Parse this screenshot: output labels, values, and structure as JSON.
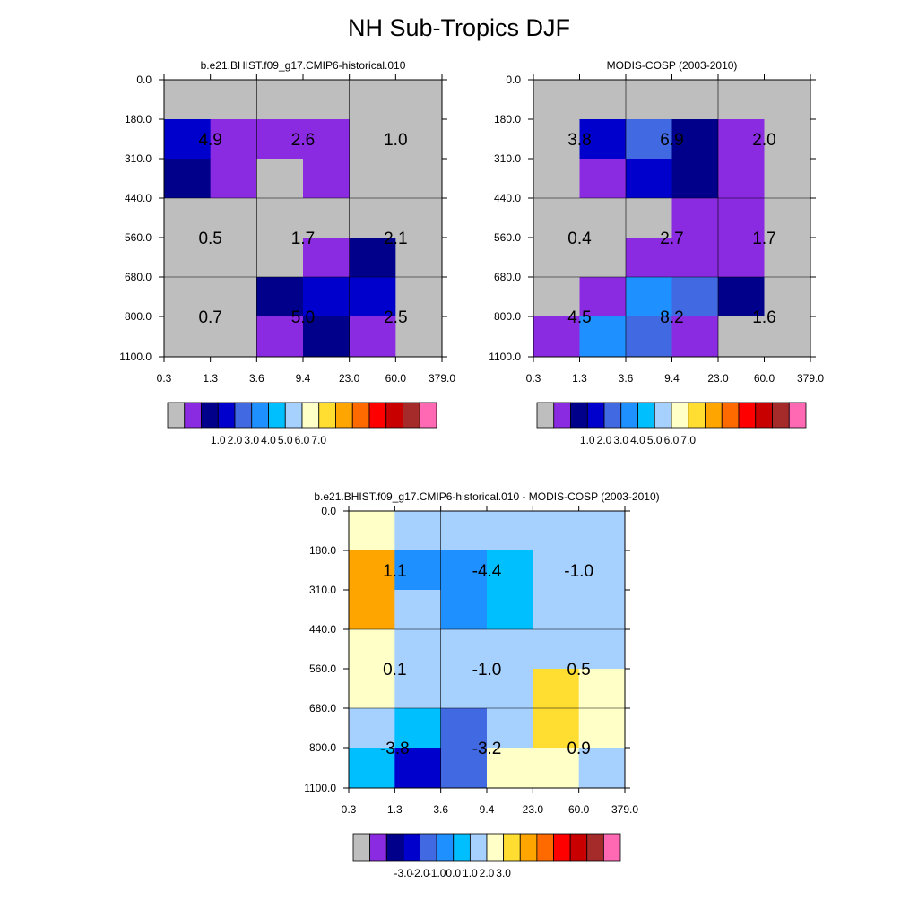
{
  "figure": {
    "title": "NH Sub-Tropics DJF"
  },
  "colors": {
    "nodata": "#bebebe",
    "palette": [
      "#bebebe",
      "#8a2be2",
      "#00008b",
      "#0000cd",
      "#4169e1",
      "#1e90ff",
      "#00bfff",
      "#a6d1ff",
      "#ffffc8",
      "#ffde31",
      "#ffa500",
      "#ff6a00",
      "#ff0000",
      "#c80000",
      "#a52a2a",
      "#ff69b4"
    ]
  },
  "chart_data": [
    {
      "type": "heatmap",
      "title": "b.e21.BHIST.f09_g17.CMIP6-historical.010",
      "x_ticks": [
        "0.3",
        "1.3",
        "3.6",
        "9.4",
        "23.0",
        "60.0",
        "379.0"
      ],
      "y_ticks": [
        "0.0",
        "180.0",
        "310.0",
        "440.0",
        "560.0",
        "680.0",
        "800.0",
        "1100.0"
      ],
      "cells": [
        [
          0,
          0,
          0,
          0,
          0,
          0
        ],
        [
          3,
          1,
          1,
          1,
          0,
          0
        ],
        [
          2,
          1,
          0,
          1,
          0,
          0
        ],
        [
          0,
          0,
          0,
          0,
          0,
          0
        ],
        [
          0,
          0,
          0,
          1,
          2,
          0
        ],
        [
          0,
          0,
          2,
          3,
          3,
          0
        ],
        [
          0,
          0,
          1,
          2,
          1,
          0
        ]
      ],
      "boxes": [
        {
          "label": "4.9",
          "col": 0,
          "row": 0
        },
        {
          "label": "2.6",
          "col": 1,
          "row": 0
        },
        {
          "label": "1.0",
          "col": 2,
          "row": 0
        },
        {
          "label": "0.5",
          "col": 0,
          "row": 1
        },
        {
          "label": "1.7",
          "col": 1,
          "row": 1
        },
        {
          "label": "2.1",
          "col": 2,
          "row": 1
        },
        {
          "label": "0.7",
          "col": 0,
          "row": 2
        },
        {
          "label": "5.0",
          "col": 1,
          "row": 2
        },
        {
          "label": "2.5",
          "col": 2,
          "row": 2
        }
      ],
      "colorbar_labels": [
        "1.0",
        "2.0",
        "3.0",
        "4.0",
        "5.0",
        "6.0",
        "7.0"
      ]
    },
    {
      "type": "heatmap",
      "title": "MODIS-COSP (2003-2010)",
      "x_ticks": [
        "0.3",
        "1.3",
        "3.6",
        "9.4",
        "23.0",
        "60.0",
        "379.0"
      ],
      "y_ticks": [
        "0.0",
        "180.0",
        "310.0",
        "440.0",
        "560.0",
        "680.0",
        "800.0",
        "1100.0"
      ],
      "cells": [
        [
          0,
          0,
          0,
          0,
          0,
          0
        ],
        [
          0,
          3,
          4,
          2,
          1,
          0
        ],
        [
          0,
          1,
          3,
          2,
          1,
          0
        ],
        [
          0,
          0,
          0,
          1,
          1,
          0
        ],
        [
          0,
          0,
          1,
          1,
          1,
          0
        ],
        [
          0,
          1,
          5,
          4,
          2,
          0
        ],
        [
          1,
          5,
          4,
          1,
          0,
          0
        ]
      ],
      "boxes": [
        {
          "label": "3.8",
          "col": 0,
          "row": 0
        },
        {
          "label": "6.9",
          "col": 1,
          "row": 0
        },
        {
          "label": "2.0",
          "col": 2,
          "row": 0
        },
        {
          "label": "0.4",
          "col": 0,
          "row": 1
        },
        {
          "label": "2.7",
          "col": 1,
          "row": 1
        },
        {
          "label": "1.7",
          "col": 2,
          "row": 1
        },
        {
          "label": "4.5",
          "col": 0,
          "row": 2
        },
        {
          "label": "8.2",
          "col": 1,
          "row": 2
        },
        {
          "label": "1.6",
          "col": 2,
          "row": 2
        }
      ],
      "colorbar_labels": [
        "1.0",
        "2.0",
        "3.0",
        "4.0",
        "5.0",
        "6.0",
        "7.0"
      ]
    },
    {
      "type": "heatmap",
      "title": "b.e21.BHIST.f09_g17.CMIP6-historical.010 - MODIS-COSP (2003-2010)",
      "x_ticks": [
        "0.3",
        "1.3",
        "3.6",
        "9.4",
        "23.0",
        "60.0",
        "379.0"
      ],
      "y_ticks": [
        "0.0",
        "180.0",
        "310.0",
        "440.0",
        "560.0",
        "680.0",
        "800.0",
        "1100.0"
      ],
      "cells": [
        [
          8,
          7,
          7,
          7,
          7,
          7
        ],
        [
          10,
          5,
          5,
          6,
          7,
          7
        ],
        [
          10,
          7,
          5,
          6,
          7,
          7
        ],
        [
          8,
          7,
          7,
          7,
          7,
          7
        ],
        [
          8,
          7,
          7,
          7,
          9,
          8
        ],
        [
          7,
          6,
          4,
          7,
          9,
          8
        ],
        [
          6,
          3,
          4,
          8,
          8,
          7
        ]
      ],
      "boxes": [
        {
          "label": "1.1",
          "col": 0,
          "row": 0
        },
        {
          "label": "-4.4",
          "col": 1,
          "row": 0
        },
        {
          "label": "-1.0",
          "col": 2,
          "row": 0
        },
        {
          "label": "0.1",
          "col": 0,
          "row": 1
        },
        {
          "label": "-1.0",
          "col": 1,
          "row": 1
        },
        {
          "label": "0.5",
          "col": 2,
          "row": 1
        },
        {
          "label": "-3.8",
          "col": 0,
          "row": 2
        },
        {
          "label": "-3.2",
          "col": 1,
          "row": 2
        },
        {
          "label": "0.9",
          "col": 2,
          "row": 2
        }
      ],
      "colorbar_labels": [
        "-3.0",
        "-2.0",
        "-1.0",
        "0.0",
        "1.0",
        "2.0",
        "3.0"
      ]
    }
  ]
}
